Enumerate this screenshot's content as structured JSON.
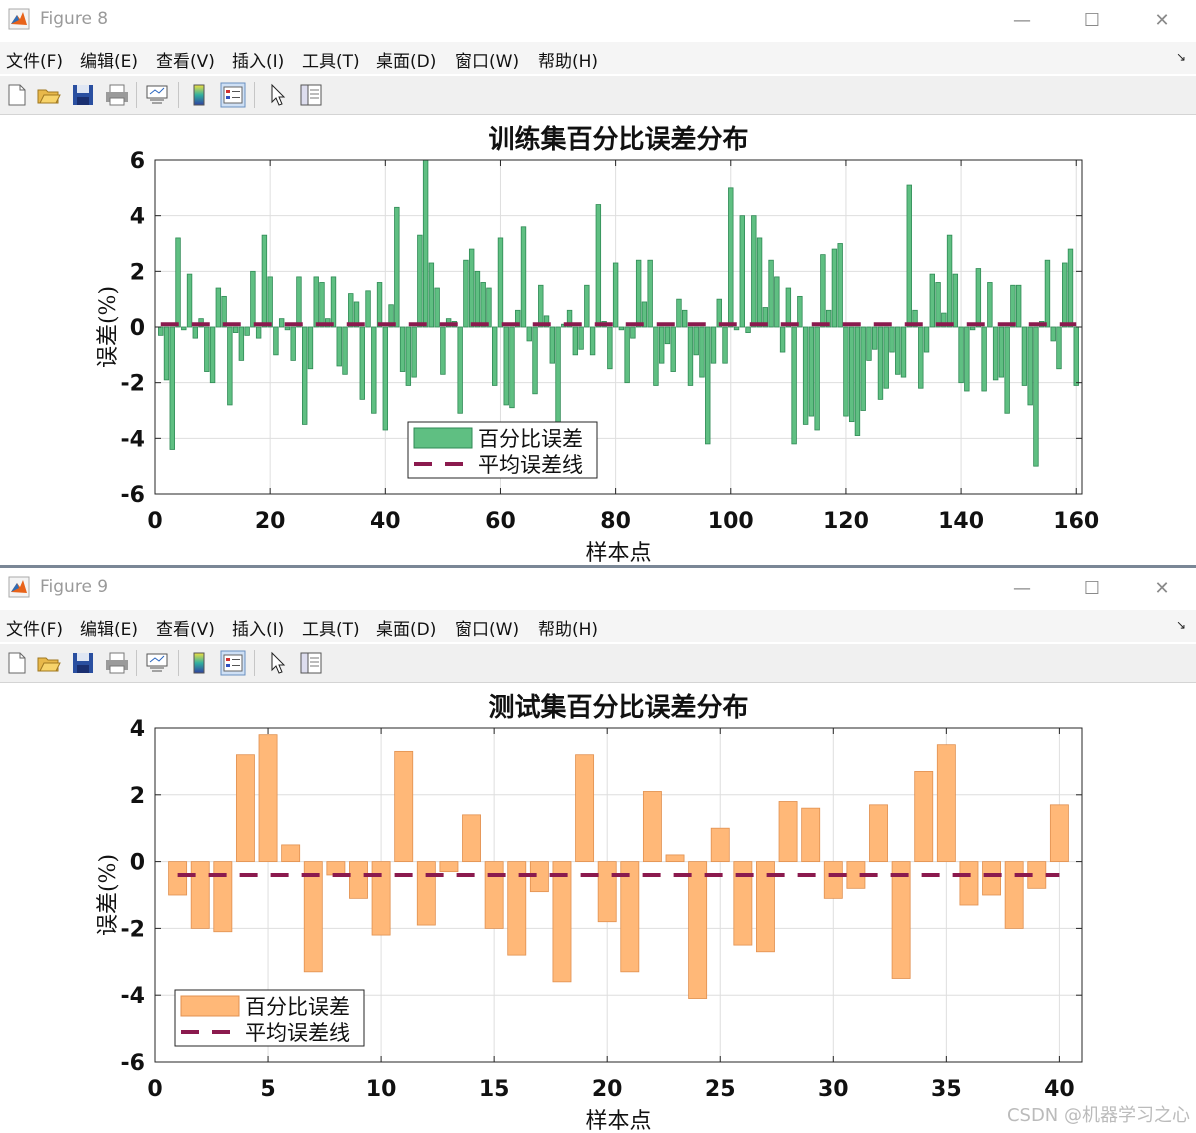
{
  "windows": [
    {
      "title": "Figure 8",
      "menu": [
        "文件(F)",
        "编辑(E)",
        "查看(V)",
        "插入(I)",
        "工具(T)",
        "桌面(D)",
        "窗口(W)",
        "帮助(H)"
      ],
      "toolbar_icons": [
        "new-figure-icon",
        "open-file-icon",
        "save-icon",
        "print-icon",
        "link-icon",
        "colorbar-icon",
        "legend-icon",
        "pointer-icon",
        "property-editor-icon"
      ],
      "colors": {
        "bar_fill": "#5fbf82",
        "bar_edge": "#2f8a55",
        "mean_line": "#8b1a4e"
      },
      "chart_data": {
        "type": "bar",
        "title": "训练集百分比误差分布",
        "xlabel": "样本点",
        "ylabel": "误差(%)",
        "xlim": [
          0,
          161
        ],
        "ylim": [
          -6,
          6
        ],
        "xticks": [
          0,
          20,
          40,
          60,
          80,
          100,
          120,
          140,
          160
        ],
        "yticks": [
          -6,
          -4,
          -2,
          0,
          2,
          4,
          6
        ],
        "x": [
          1,
          2,
          3,
          4,
          5,
          6,
          7,
          8,
          9,
          10,
          11,
          12,
          13,
          14,
          15,
          16,
          17,
          18,
          19,
          20,
          21,
          22,
          23,
          24,
          25,
          26,
          27,
          28,
          29,
          30,
          31,
          32,
          33,
          34,
          35,
          36,
          37,
          38,
          39,
          40,
          41,
          42,
          43,
          44,
          45,
          46,
          47,
          48,
          49,
          50,
          51,
          52,
          53,
          54,
          55,
          56,
          57,
          58,
          59,
          60,
          61,
          62,
          63,
          64,
          65,
          66,
          67,
          68,
          69,
          70,
          71,
          72,
          73,
          74,
          75,
          76,
          77,
          78,
          79,
          80,
          81,
          82,
          83,
          84,
          85,
          86,
          87,
          88,
          89,
          90,
          91,
          92,
          93,
          94,
          95,
          96,
          97,
          98,
          99,
          100,
          101,
          102,
          103,
          104,
          105,
          106,
          107,
          108,
          109,
          110,
          111,
          112,
          113,
          114,
          115,
          116,
          117,
          118,
          119,
          120,
          121,
          122,
          123,
          124,
          125,
          126,
          127,
          128,
          129,
          130,
          131,
          132,
          133,
          134,
          135,
          136,
          137,
          138,
          139,
          140,
          141,
          142,
          143,
          144,
          145,
          146,
          147,
          148,
          149,
          150,
          151,
          152,
          153,
          154,
          155,
          156,
          157,
          158,
          159,
          160
        ],
        "series": [
          {
            "name": "百分比误差",
            "type": "bar",
            "values": [
              -0.3,
              -1.9,
              -4.4,
              3.2,
              -0.1,
              1.9,
              -0.4,
              0.3,
              -1.6,
              -2.0,
              1.4,
              1.1,
              -2.8,
              -0.2,
              -1.2,
              -0.3,
              2.0,
              -0.4,
              3.3,
              1.8,
              -1.0,
              0.3,
              -0.1,
              -1.2,
              1.8,
              -3.5,
              -1.5,
              1.8,
              1.6,
              0.3,
              1.8,
              -1.4,
              -1.7,
              1.2,
              0.9,
              -2.6,
              1.3,
              -3.1,
              1.6,
              -3.7,
              0.8,
              4.3,
              -1.6,
              -2.1,
              -1.8,
              3.3,
              6.0,
              2.3,
              1.4,
              -1.7,
              0.3,
              0.2,
              -3.1,
              2.4,
              2.8,
              2.0,
              1.6,
              1.4,
              -2.1,
              3.2,
              -2.8,
              -2.9,
              0.6,
              3.6,
              -0.5,
              -2.4,
              1.5,
              0.4,
              -1.3,
              -3.9,
              0.1,
              0.6,
              -1.0,
              -0.8,
              1.5,
              -1.0,
              4.4,
              0.2,
              -1.5,
              2.3,
              -0.1,
              -2.0,
              -0.4,
              2.4,
              0.9,
              2.4,
              -2.1,
              -1.3,
              -0.6,
              -1.6,
              1.0,
              0.6,
              -2.1,
              -1.0,
              -1.8,
              -4.2,
              -1.3,
              1.0,
              -1.3,
              5.0,
              -0.1,
              4.0,
              -0.2,
              4.0,
              3.2,
              0.7,
              2.4,
              1.8,
              -0.9,
              1.4,
              -4.2,
              1.1,
              -3.5,
              -3.2,
              -3.7,
              2.6,
              0.6,
              2.8,
              3.0,
              -3.2,
              -3.4,
              -3.9,
              -3.0,
              -1.2,
              -0.8,
              -2.6,
              -2.2,
              -0.9,
              -1.7,
              -1.8,
              5.1,
              0.6,
              -2.2,
              -0.9,
              1.9,
              1.6,
              0.5,
              3.3,
              1.9,
              -2.0,
              -2.3,
              -0.1,
              2.1,
              -2.3,
              1.6,
              -1.9,
              -1.8,
              -3.1,
              1.5,
              1.5,
              -2.1,
              -2.8,
              -5.0,
              0.2,
              2.4,
              -0.5,
              -1.5,
              2.3,
              2.8,
              -2.1
            ]
          },
          {
            "name": "平均误差线",
            "type": "line",
            "y": 0.1
          }
        ],
        "legend": {
          "position": "lower-middle",
          "entries": [
            "百分比误差",
            "平均误差线"
          ]
        },
        "grid": true
      }
    },
    {
      "title": "Figure 9",
      "menu": [
        "文件(F)",
        "编辑(E)",
        "查看(V)",
        "插入(I)",
        "工具(T)",
        "桌面(D)",
        "窗口(W)",
        "帮助(H)"
      ],
      "toolbar_icons": [
        "new-figure-icon",
        "open-file-icon",
        "save-icon",
        "print-icon",
        "link-icon",
        "colorbar-icon",
        "legend-icon",
        "pointer-icon",
        "property-editor-icon"
      ],
      "colors": {
        "bar_fill": "#ffb878",
        "bar_edge": "#e09050",
        "mean_line": "#8b1a4e"
      },
      "chart_data": {
        "type": "bar",
        "title": "测试集百分比误差分布",
        "xlabel": "样本点",
        "ylabel": "误差(%)",
        "xlim": [
          0,
          41
        ],
        "ylim": [
          -6,
          4
        ],
        "xticks": [
          0,
          5,
          10,
          15,
          20,
          25,
          30,
          35,
          40
        ],
        "yticks": [
          -6,
          -4,
          -2,
          0,
          2,
          4
        ],
        "x": [
          1,
          2,
          3,
          4,
          5,
          6,
          7,
          8,
          9,
          10,
          11,
          12,
          13,
          14,
          15,
          16,
          17,
          18,
          19,
          20,
          21,
          22,
          23,
          24,
          25,
          26,
          27,
          28,
          29,
          30,
          31,
          32,
          33,
          34,
          35,
          36,
          37,
          38,
          39,
          40
        ],
        "series": [
          {
            "name": "百分比误差",
            "type": "bar",
            "values": [
              -1.0,
              -2.0,
              -2.1,
              3.2,
              3.8,
              0.5,
              -3.3,
              -0.4,
              -1.1,
              -2.2,
              3.3,
              -1.9,
              -0.3,
              1.4,
              -2.0,
              -2.8,
              -0.9,
              -3.6,
              3.2,
              -1.8,
              -3.3,
              2.1,
              0.2,
              -4.1,
              1.0,
              -2.5,
              -2.7,
              1.8,
              1.6,
              -1.1,
              -0.8,
              1.7,
              -3.5,
              2.7,
              3.5,
              -1.3,
              -1.0,
              -2.0,
              -0.8,
              1.7
            ]
          },
          {
            "name": "平均误差线",
            "type": "line",
            "y": -0.4
          }
        ],
        "legend": {
          "position": "lower-left",
          "entries": [
            "百分比误差",
            "平均误差线"
          ]
        },
        "grid": true
      }
    }
  ],
  "watermark": "CSDN @机器学习之心"
}
